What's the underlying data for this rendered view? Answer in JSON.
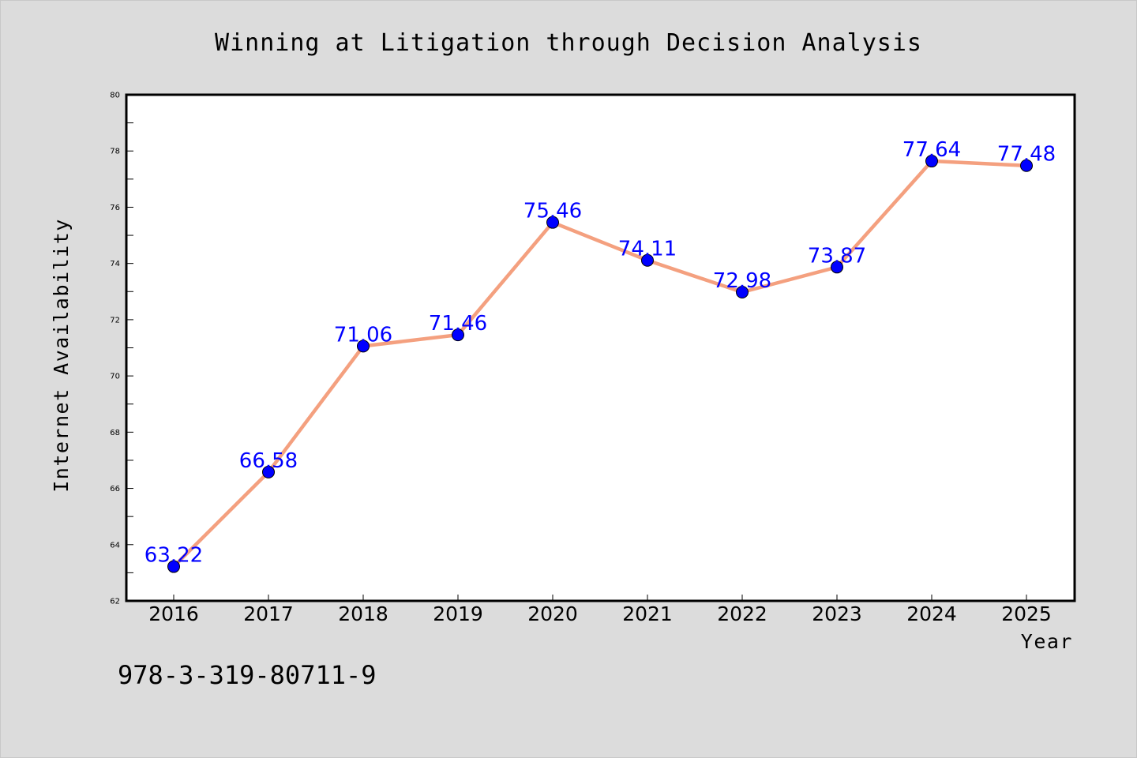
{
  "chart_data": {
    "type": "line",
    "title": "Winning at Litigation through Decision Analysis",
    "xlabel": "Year",
    "ylabel": "Internet Availability",
    "categories": [
      "2016",
      "2017",
      "2018",
      "2019",
      "2020",
      "2021",
      "2022",
      "2023",
      "2024",
      "2025"
    ],
    "series": [
      {
        "values": [
          63.22,
          66.58,
          71.06,
          71.46,
          75.46,
          74.11,
          72.98,
          73.87,
          77.64,
          77.48
        ],
        "data_labels": [
          "63.22",
          "66.58",
          "71.06",
          "71.46",
          "75.46",
          "74.11",
          "72.98",
          "73.87",
          "77.64",
          "77.48"
        ]
      }
    ],
    "ylim": [
      62,
      80
    ],
    "yticks": [
      "62",
      "64",
      "66",
      "68",
      "70",
      "72",
      "74",
      "76",
      "78",
      "80"
    ],
    "grid": false,
    "line_color": "#f4a07f",
    "marker_color": "#0000ff",
    "label_color": "#0000ff"
  },
  "footer": {
    "code": "978-3-319-80711-9"
  }
}
